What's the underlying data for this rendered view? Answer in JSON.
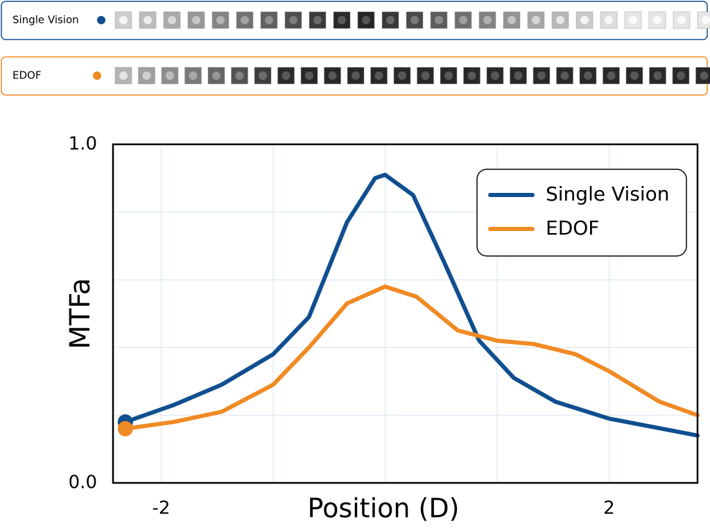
{
  "chart_data": {
    "type": "line",
    "xlabel": "Position (D)",
    "ylabel": "MTFa",
    "xlim": [
      -2.43,
      2.79
    ],
    "ylim": [
      0,
      1
    ],
    "xticks": [
      -2,
      2
    ],
    "yticks": [
      {
        "value": 0,
        "label": "0.0"
      },
      {
        "value": 1,
        "label": "1.0"
      }
    ],
    "xgrid": [
      -1,
      0,
      1
    ],
    "ygrid": [
      0.2,
      0.4,
      0.6,
      0.8
    ],
    "grid": true,
    "legend": "upper right",
    "series": [
      {
        "name": "Single Vision",
        "color": "#0f4f8f",
        "x": [
          -2.32,
          -1.89,
          -1.46,
          -1.0,
          -0.68,
          -0.34,
          -0.09,
          0,
          0.25,
          0.53,
          0.84,
          1.15,
          1.52,
          2.0,
          2.79
        ],
        "values": [
          0.18,
          0.23,
          0.29,
          0.38,
          0.49,
          0.77,
          0.9,
          0.91,
          0.85,
          0.65,
          0.42,
          0.31,
          0.24,
          0.19,
          0.14
        ]
      },
      {
        "name": "EDOF",
        "color": "#f08a24",
        "x": [
          -2.32,
          -1.89,
          -1.46,
          -1.0,
          -0.68,
          -0.34,
          0,
          0.28,
          0.65,
          1.0,
          1.33,
          1.7,
          2.0,
          2.45,
          2.79
        ],
        "values": [
          0.16,
          0.18,
          0.21,
          0.29,
          0.4,
          0.53,
          0.58,
          0.55,
          0.45,
          0.42,
          0.41,
          0.38,
          0.33,
          0.24,
          0.2
        ]
      }
    ]
  }
}
